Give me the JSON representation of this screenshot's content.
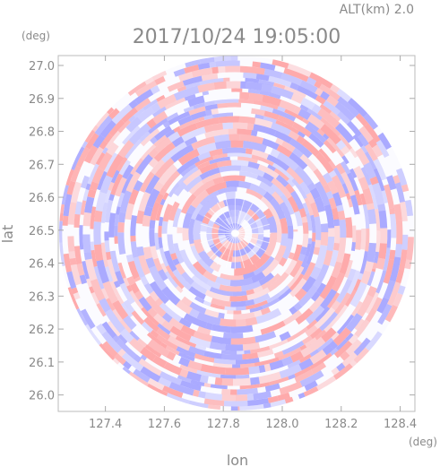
{
  "header": {
    "altitude_label": "ALT(km) 2.0",
    "timestamp": "2017/10/24 19:05:00"
  },
  "chart_data": {
    "type": "heatmap",
    "title": "2017/10/24 19:05:00",
    "subtitle": "ALT(km) 2.0",
    "xlabel": "lon",
    "ylabel": "lat",
    "x_unit": "(deg)",
    "y_unit": "(deg)",
    "xlim": [
      127.24,
      128.45
    ],
    "ylim": [
      25.95,
      27.03
    ],
    "x_ticks": [
      "127.4",
      "127.6",
      "127.8",
      "128.0",
      "128.2",
      "128.4"
    ],
    "y_ticks": [
      "26.0",
      "26.1",
      "26.2",
      "26.3",
      "26.4",
      "26.5",
      "26.6",
      "26.7",
      "26.8",
      "26.9",
      "27.0"
    ],
    "radar_center": {
      "lon": 127.84,
      "lat": 26.49
    },
    "radar_range_lat_deg": 0.54,
    "field_pattern": "polar-scan rings of alternating positive/negative values",
    "colors": {
      "positive": "#ff8f8f",
      "negative": "#8f8fff",
      "neutral": "#ffffff",
      "axis": "#8a8a8a",
      "frame": "#bbbbbb"
    }
  }
}
